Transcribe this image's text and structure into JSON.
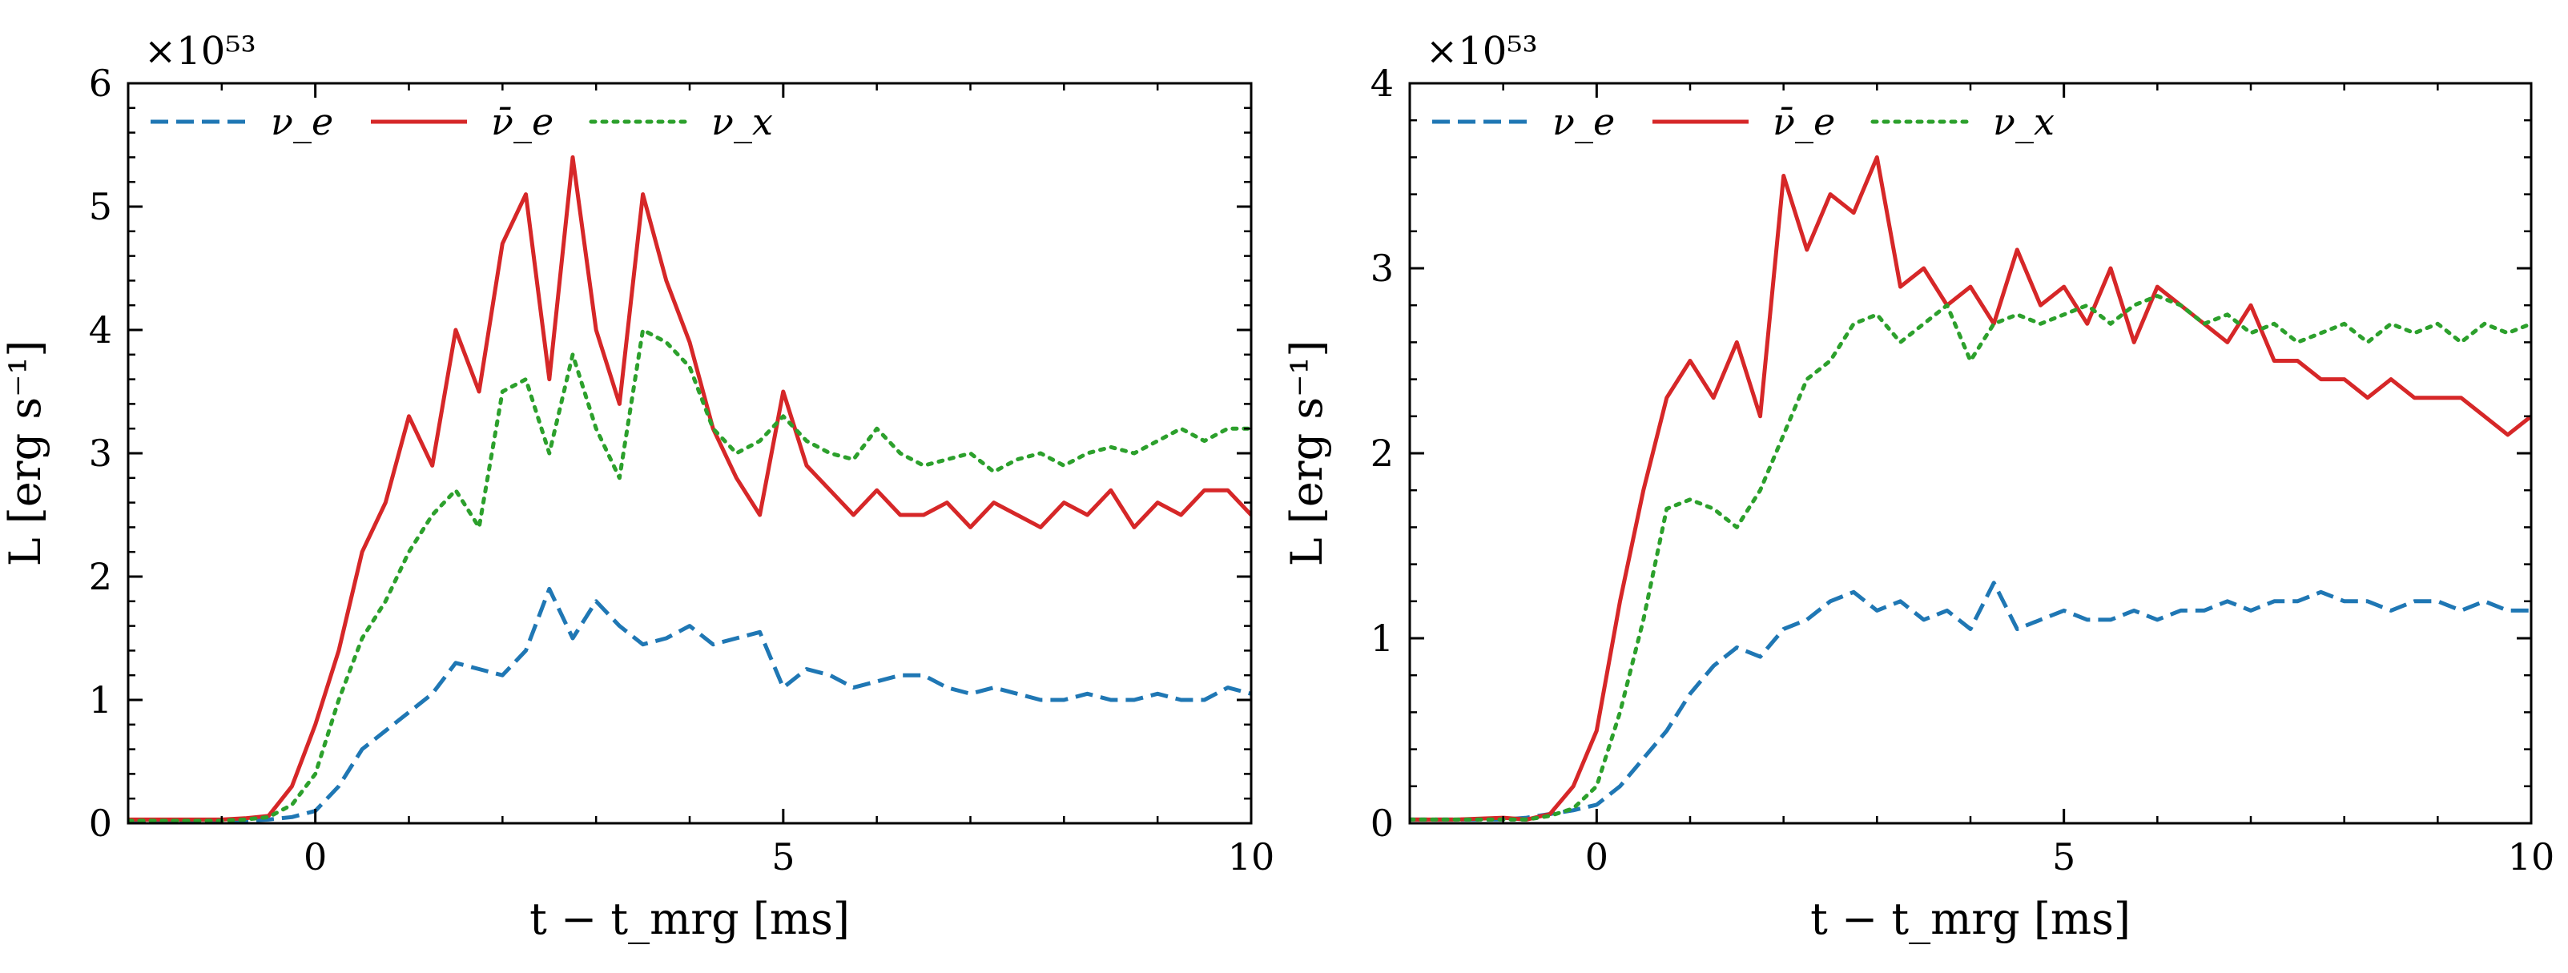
{
  "chart_data": [
    {
      "type": "line",
      "title": "",
      "xlabel": "t − t_mrg [ms]",
      "ylabel": "L [erg s⁻¹]",
      "xlim": [
        -2,
        10
      ],
      "ylim": [
        0,
        6
      ],
      "xticks": [
        0,
        5,
        10
      ],
      "yticks": [
        0,
        1,
        2,
        3,
        4,
        5,
        6
      ],
      "y_scale_label": "×10⁵³",
      "legend_position": "top-left",
      "grid": false,
      "x": [
        -2,
        -1.5,
        -1,
        -0.75,
        -0.5,
        -0.25,
        0,
        0.25,
        0.5,
        0.75,
        1,
        1.25,
        1.5,
        1.75,
        2,
        2.25,
        2.5,
        2.75,
        3,
        3.25,
        3.5,
        3.75,
        4,
        4.25,
        4.5,
        4.75,
        5,
        5.25,
        5.5,
        5.75,
        6,
        6.25,
        6.5,
        6.75,
        7,
        7.25,
        7.5,
        7.75,
        8,
        8.25,
        8.5,
        8.75,
        9,
        9.25,
        9.5,
        9.75,
        10
      ],
      "series": [
        {
          "name": "ν_e",
          "color": "#1f77b4",
          "style": "dashed",
          "values": [
            0.02,
            0.02,
            0.02,
            0.02,
            0.03,
            0.05,
            0.1,
            0.3,
            0.6,
            0.75,
            0.9,
            1.05,
            1.3,
            1.25,
            1.2,
            1.4,
            1.9,
            1.5,
            1.8,
            1.6,
            1.45,
            1.5,
            1.6,
            1.45,
            1.5,
            1.55,
            1.1,
            1.25,
            1.2,
            1.1,
            1.15,
            1.2,
            1.2,
            1.1,
            1.05,
            1.1,
            1.05,
            1.0,
            1.0,
            1.05,
            1.0,
            1.0,
            1.05,
            1.0,
            1.0,
            1.1,
            1.05
          ]
        },
        {
          "name": "ν̄_e",
          "color": "#d62728",
          "style": "solid",
          "values": [
            0.03,
            0.03,
            0.03,
            0.04,
            0.06,
            0.3,
            0.8,
            1.4,
            2.2,
            2.6,
            3.3,
            2.9,
            4.0,
            3.5,
            4.7,
            5.1,
            3.6,
            5.4,
            4.0,
            3.4,
            5.1,
            4.4,
            3.9,
            3.2,
            2.8,
            2.5,
            3.5,
            2.9,
            2.7,
            2.5,
            2.7,
            2.5,
            2.5,
            2.6,
            2.4,
            2.6,
            2.5,
            2.4,
            2.6,
            2.5,
            2.7,
            2.4,
            2.6,
            2.5,
            2.7,
            2.7,
            2.5
          ]
        },
        {
          "name": "ν_x",
          "color": "#2ca02c",
          "style": "dotted",
          "values": [
            0.02,
            0.02,
            0.02,
            0.03,
            0.05,
            0.15,
            0.4,
            1.0,
            1.5,
            1.8,
            2.2,
            2.5,
            2.7,
            2.4,
            3.5,
            3.6,
            3.0,
            3.8,
            3.2,
            2.8,
            4.0,
            3.9,
            3.7,
            3.2,
            3.0,
            3.1,
            3.3,
            3.1,
            3.0,
            2.95,
            3.2,
            3.0,
            2.9,
            2.95,
            3.0,
            2.85,
            2.95,
            3.0,
            2.9,
            3.0,
            3.05,
            3.0,
            3.1,
            3.2,
            3.1,
            3.2,
            3.2
          ]
        }
      ]
    },
    {
      "type": "line",
      "title": "",
      "xlabel": "t − t_mrg [ms]",
      "ylabel": "L [erg s⁻¹]",
      "xlim": [
        -2,
        10
      ],
      "ylim": [
        0,
        4
      ],
      "xticks": [
        0,
        5,
        10
      ],
      "yticks": [
        0,
        1,
        2,
        3,
        4
      ],
      "y_scale_label": "×10⁵³",
      "legend_position": "top-left",
      "grid": false,
      "x": [
        -2,
        -1.5,
        -1,
        -0.75,
        -0.5,
        -0.25,
        0,
        0.25,
        0.5,
        0.75,
        1,
        1.25,
        1.5,
        1.75,
        2,
        2.25,
        2.5,
        2.75,
        3,
        3.25,
        3.5,
        3.75,
        4,
        4.25,
        4.5,
        4.75,
        5,
        5.25,
        5.5,
        5.75,
        6,
        6.25,
        6.5,
        6.75,
        7,
        7.25,
        7.5,
        7.75,
        8,
        8.25,
        8.5,
        8.75,
        9,
        9.25,
        9.5,
        9.75,
        10
      ],
      "series": [
        {
          "name": "ν_e",
          "color": "#1f77b4",
          "style": "dashed",
          "values": [
            0.02,
            0.02,
            0.02,
            0.03,
            0.05,
            0.07,
            0.1,
            0.2,
            0.35,
            0.5,
            0.7,
            0.85,
            0.95,
            0.9,
            1.05,
            1.1,
            1.2,
            1.25,
            1.15,
            1.2,
            1.1,
            1.15,
            1.05,
            1.3,
            1.05,
            1.1,
            1.15,
            1.1,
            1.1,
            1.15,
            1.1,
            1.15,
            1.15,
            1.2,
            1.15,
            1.2,
            1.2,
            1.25,
            1.2,
            1.2,
            1.15,
            1.2,
            1.2,
            1.15,
            1.2,
            1.15,
            1.15
          ]
        },
        {
          "name": "ν̄_e",
          "color": "#d62728",
          "style": "solid",
          "values": [
            0.02,
            0.02,
            0.03,
            0.02,
            0.05,
            0.2,
            0.5,
            1.2,
            1.8,
            2.3,
            2.5,
            2.3,
            2.6,
            2.2,
            3.5,
            3.1,
            3.4,
            3.3,
            3.6,
            2.9,
            3.0,
            2.8,
            2.9,
            2.7,
            3.1,
            2.8,
            2.9,
            2.7,
            3.0,
            2.6,
            2.9,
            2.8,
            2.7,
            2.6,
            2.8,
            2.5,
            2.5,
            2.4,
            2.4,
            2.3,
            2.4,
            2.3,
            2.3,
            2.3,
            2.2,
            2.1,
            2.2
          ]
        },
        {
          "name": "ν_x",
          "color": "#2ca02c",
          "style": "dotted",
          "values": [
            0.02,
            0.02,
            0.02,
            0.02,
            0.04,
            0.08,
            0.2,
            0.6,
            1.1,
            1.7,
            1.75,
            1.7,
            1.6,
            1.8,
            2.1,
            2.4,
            2.5,
            2.7,
            2.75,
            2.6,
            2.7,
            2.8,
            2.5,
            2.7,
            2.75,
            2.7,
            2.75,
            2.8,
            2.7,
            2.8,
            2.85,
            2.8,
            2.7,
            2.75,
            2.65,
            2.7,
            2.6,
            2.65,
            2.7,
            2.6,
            2.7,
            2.65,
            2.7,
            2.6,
            2.7,
            2.65,
            2.7
          ]
        }
      ]
    }
  ]
}
